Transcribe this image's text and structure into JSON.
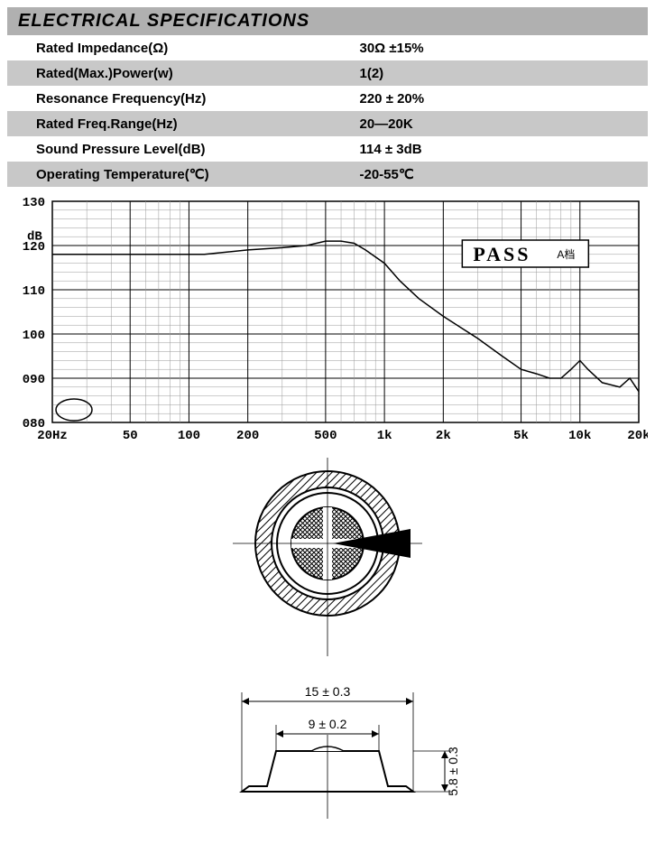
{
  "section_title": "ELECTRICAL SPECIFICATIONS",
  "specs": {
    "rows": [
      {
        "label": "Rated Impedance(Ω)",
        "value": "30Ω ±15%",
        "bg": "white"
      },
      {
        "label": "Rated(Max.)Power(w)",
        "value": "1(2)",
        "bg": "grey"
      },
      {
        "label": "Resonance Frequency(Hz)",
        "value": "220 ± 20%",
        "bg": "white"
      },
      {
        "label": "Rated Freq.Range(Hz)",
        "value": "20—20K",
        "bg": "grey"
      },
      {
        "label": "Sound Pressure Level(dB)",
        "value": "114 ± 3dB",
        "bg": "white"
      },
      {
        "label": "Operating Temperature(℃)",
        "value": "-20-55℃",
        "bg": "grey"
      }
    ]
  },
  "chart": {
    "type": "line",
    "y_unit": "dB",
    "ylim": [
      80,
      130
    ],
    "y_ticks": [
      "080",
      "090",
      "100",
      "110",
      "120",
      "130"
    ],
    "y_tick_vals": [
      80,
      90,
      100,
      110,
      120,
      130
    ],
    "x_ticks_label": [
      "20Hz",
      "50",
      "100",
      "200",
      "500",
      "1k",
      "2k",
      "5k",
      "10k",
      "20k"
    ],
    "x_ticks_freq": [
      20,
      50,
      100,
      200,
      500,
      1000,
      2000,
      5000,
      10000,
      20000
    ],
    "x_scale": "log",
    "pass_label": "PASS",
    "pass_note": "A档",
    "background_color": "#ffffff",
    "grid_minor_color": "#999999",
    "grid_major_color": "#000000",
    "curve_color": "#000000",
    "curve_points_freq_db": [
      [
        20,
        118
      ],
      [
        30,
        118
      ],
      [
        50,
        118
      ],
      [
        80,
        118
      ],
      [
        120,
        118
      ],
      [
        200,
        119
      ],
      [
        300,
        119.5
      ],
      [
        400,
        120
      ],
      [
        500,
        121
      ],
      [
        600,
        121
      ],
      [
        700,
        120.5
      ],
      [
        800,
        119
      ],
      [
        1000,
        116
      ],
      [
        1200,
        112
      ],
      [
        1500,
        108
      ],
      [
        2000,
        104
      ],
      [
        3000,
        99
      ],
      [
        4000,
        95
      ],
      [
        5000,
        92
      ],
      [
        6000,
        91
      ],
      [
        7000,
        90
      ],
      [
        8000,
        90
      ],
      [
        9000,
        92
      ],
      [
        10000,
        94
      ],
      [
        11000,
        92
      ],
      [
        13000,
        89
      ],
      [
        16000,
        88
      ],
      [
        18000,
        90
      ],
      [
        20000,
        87
      ]
    ]
  },
  "diagram": {
    "top_view": {
      "outer_diameter": 15,
      "hatch_color": "#000000",
      "fill_color": "#ffffff"
    },
    "side_view": {
      "width_outer_label": "15 ± 0.3",
      "width_inner_label": "9 ± 0.2",
      "height_label": "5.8 ± 0.3"
    },
    "line_color": "#000000"
  }
}
